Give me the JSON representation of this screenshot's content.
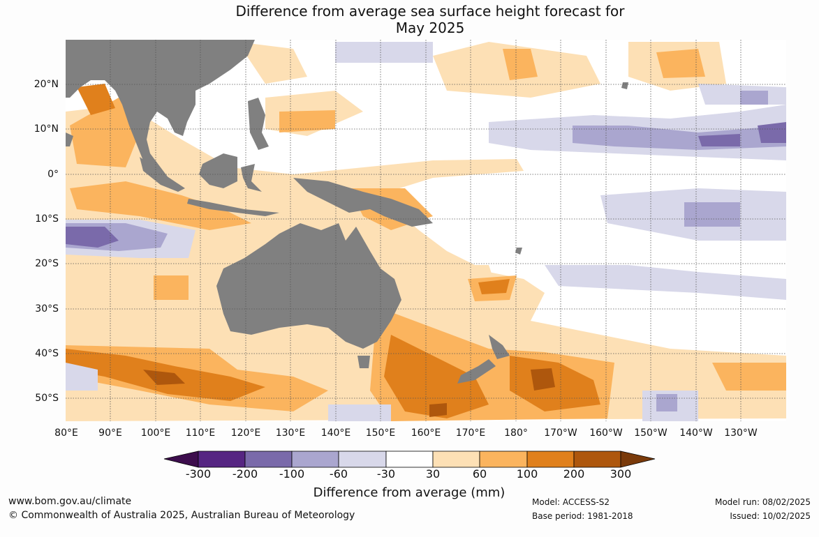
{
  "title": {
    "line1": "Difference from average sea surface height forecast for",
    "line2": "May 2025"
  },
  "map": {
    "lon_labels": [
      "80°E",
      "90°E",
      "100°E",
      "110°E",
      "120°E",
      "130°E",
      "140°E",
      "150°E",
      "160°E",
      "170°E",
      "180°",
      "170°W",
      "160°W",
      "150°W",
      "140°W",
      "130°W"
    ],
    "lat_labels": [
      "20°N",
      "10°N",
      "0°",
      "10°S",
      "20°S",
      "30°S",
      "40°S",
      "50°S"
    ],
    "land_color": "#808080",
    "ocean_color": "#ffffff"
  },
  "colorbar": {
    "title": "Difference from average (mm)",
    "tick_labels": [
      "-300",
      "-200",
      "-100",
      "-60",
      "-30",
      "30",
      "60",
      "100",
      "200",
      "300"
    ],
    "colors": [
      "#3d0d4d",
      "#562582",
      "#7a6aaa",
      "#aaa6cf",
      "#d8d8ea",
      "#ffffff",
      "#fde0b5",
      "#fbb45e",
      "#e0801c",
      "#ae570d",
      "#7a3a0a"
    ]
  },
  "footer": {
    "website": "www.bom.gov.au/climate",
    "copyright": "© Commonwealth of Australia 2025, Australian Bureau of Meteorology",
    "model": "Model: ACCESS-S2",
    "base_period": "Base period: 1981-2018",
    "model_run": "Model run: 08/02/2025",
    "issued": "Issued: 10/02/2025"
  }
}
